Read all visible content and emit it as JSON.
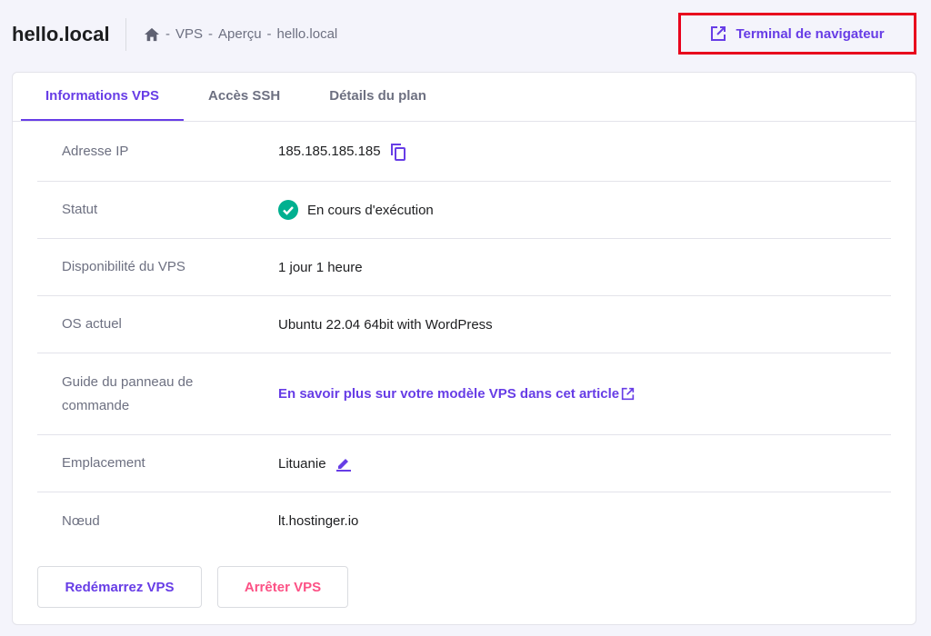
{
  "header": {
    "title": "hello.local",
    "breadcrumb": [
      "VPS",
      "Aperçu",
      "hello.local"
    ],
    "terminal_button": "Terminal de navigateur"
  },
  "tabs": [
    {
      "label": "Informations VPS",
      "active": true
    },
    {
      "label": "Accès SSH"
    },
    {
      "label": "Détails du plan"
    }
  ],
  "rows": {
    "ip": {
      "label": "Adresse IP",
      "value": "185.185.185.185"
    },
    "status": {
      "label": "Statut",
      "value": "En cours d'exécution"
    },
    "uptime": {
      "label": "Disponibilité du VPS",
      "value": "1 jour 1 heure"
    },
    "os": {
      "label": "OS actuel",
      "value": "Ubuntu 22.04 64bit with WordPress"
    },
    "guide": {
      "label": "Guide du panneau de commande",
      "value": "En savoir plus sur votre modèle VPS dans cet article"
    },
    "location": {
      "label": "Emplacement",
      "value": "Lituanie"
    },
    "node": {
      "label": "Nœud",
      "value": "lt.hostinger.io"
    }
  },
  "buttons": {
    "restart": "Redémarrez VPS",
    "stop": "Arrêter VPS"
  },
  "colors": {
    "accent": "#673de6",
    "success": "#00b090",
    "danger": "#fc5185",
    "highlight": "#e8001c"
  }
}
